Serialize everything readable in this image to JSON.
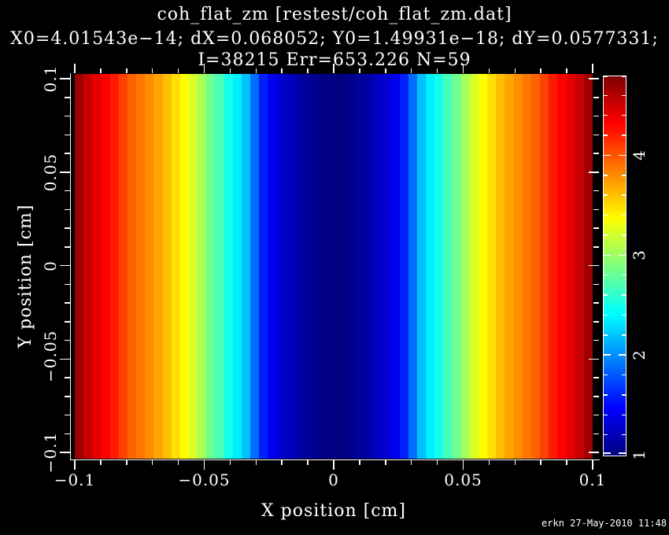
{
  "header": {
    "title": "coh_flat_zm [restest/coh_flat_zm.dat]",
    "params_line": "X0=4.01543e−14; dX=0.068052; Y0=1.49931e−18; dY=0.0577331;",
    "stats_line": "I=38215 Err=653.226 N=59"
  },
  "signature": "erkn 27-May-2010 11:48",
  "colors": {
    "background": "#000000",
    "foreground": "#ffffff",
    "colormap": "jet-rainbow"
  },
  "chart_data": {
    "type": "heatmap",
    "title": "coh_flat_zm [restest/coh_flat_zm.dat]",
    "xlabel": "X position [cm]",
    "ylabel": "Y position [cm]",
    "x_range": [
      -0.1,
      0.1
    ],
    "y_range": [
      -0.1,
      0.1
    ],
    "x_ticks": {
      "major_values": [
        -0.1,
        -0.05,
        0,
        0.05,
        0.1
      ],
      "major_labels": [
        "−0.1",
        "−0.05",
        "0",
        "0.05",
        "0.1"
      ],
      "minor_step": 0.01
    },
    "y_ticks": {
      "major_values": [
        -0.1,
        -0.05,
        0,
        0.05,
        0.1
      ],
      "major_labels": [
        "−0.1",
        "−0.05",
        "0",
        "0.05",
        "0.1"
      ],
      "minor_step": 0.01
    },
    "colorbar": {
      "min": 1.0,
      "max": 4.8,
      "major_tick_values": [
        1,
        2,
        3,
        4
      ],
      "major_tick_labels": [
        "1",
        "2",
        "3",
        "4"
      ],
      "minor_step": 0.2,
      "colormap": "jet"
    },
    "n_columns": 59,
    "note": "field is uniform along Y; intensity profile varies only with X, min 1.0 at X=0, max ~4.7 at X=±0.1",
    "column_values": [
      4.69,
      4.53,
      4.42,
      4.33,
      4.23,
      4.08,
      3.96,
      3.88,
      3.8,
      3.71,
      3.61,
      3.49,
      3.38,
      3.23,
      3.05,
      2.84,
      2.69,
      2.5,
      2.37,
      2.19,
      1.89,
      1.59,
      1.42,
      1.3,
      1.24,
      1.15,
      1.1,
      1.05,
      1.01,
      1.0,
      1.01,
      1.05,
      1.1,
      1.15,
      1.24,
      1.3,
      1.42,
      1.59,
      1.89,
      2.19,
      2.37,
      2.5,
      2.69,
      2.84,
      3.05,
      3.23,
      3.38,
      3.49,
      3.61,
      3.71,
      3.8,
      3.88,
      3.96,
      4.08,
      4.23,
      4.33,
      4.42,
      4.53,
      4.69
    ]
  }
}
